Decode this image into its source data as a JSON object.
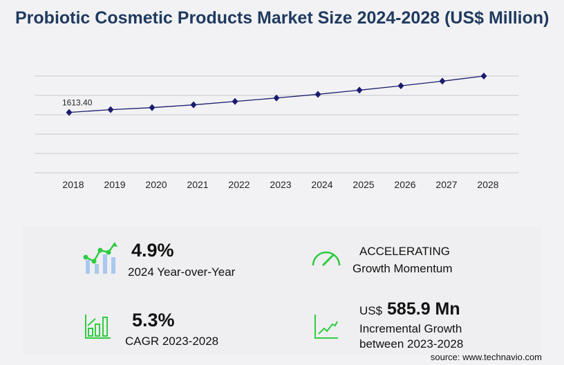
{
  "title": "Probiotic Cosmetic Products Market Size 2024-2028 (US$ Million)",
  "chart_data": {
    "type": "line",
    "categories": [
      "2018",
      "2019",
      "2020",
      "2021",
      "2022",
      "2023",
      "2024",
      "2025",
      "2026",
      "2027",
      "2028"
    ],
    "series": [
      {
        "values": [
          1613.4,
          1687,
          1741,
          1815,
          1906,
          1998,
          2096,
          2207,
          2324,
          2447,
          2584
        ]
      }
    ],
    "data_labels": [
      {
        "index": 0,
        "text": "1613.40"
      }
    ],
    "ylim": [
      0,
      2584
    ],
    "grid": true,
    "line_color": "#1a1a6e"
  },
  "kpis": {
    "yoy_value": "4.9%",
    "yoy_label": "2024 Year-over-Year",
    "momentum_value": "ACCELERATING",
    "momentum_label": "Growth Momentum",
    "cagr_value": "5.3%",
    "cagr_label": "CAGR 2023-2028",
    "incr_prefix": "US$",
    "incr_value": "585.9 Mn",
    "incr_label1": "Incremental Growth",
    "incr_label2": "between 2023-2028"
  },
  "source": "source: www.technavio.com",
  "colors": {
    "accent_green": "#2ecc40",
    "bar_blue": "#a9c8f0",
    "title": "#1f3a5f"
  }
}
